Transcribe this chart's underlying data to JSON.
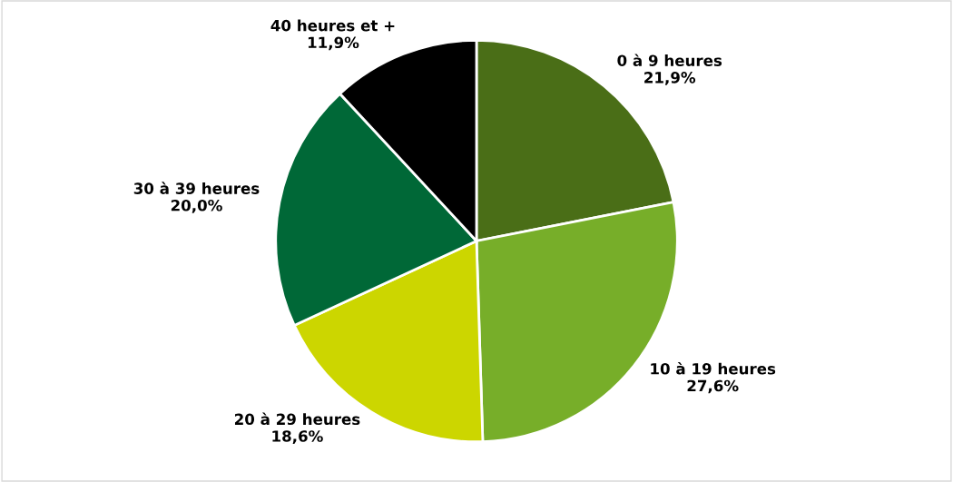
{
  "chart_data": {
    "type": "pie",
    "categories": [
      "0 à 9 heures",
      "10 à 19 heures",
      "20 à 29 heures",
      "30 à 39 heures",
      "40 heures et +"
    ],
    "values": [
      21.9,
      27.6,
      18.6,
      20.0,
      11.9
    ],
    "value_labels": [
      "21,9%",
      "27,6%",
      "18,6%",
      "20,0%",
      "11,9%"
    ],
    "colors": [
      "#4a6e17",
      "#77ae29",
      "#ccd600",
      "#006837",
      "#000000"
    ],
    "legend": false
  }
}
